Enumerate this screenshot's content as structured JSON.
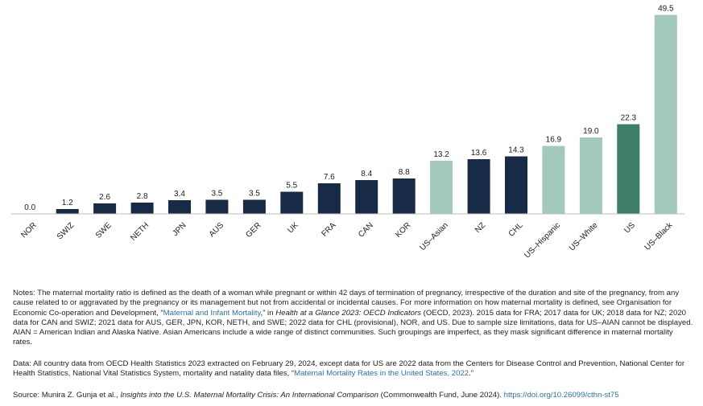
{
  "chart_data": {
    "type": "bar",
    "categories": [
      "NOR",
      "SWIZ",
      "SWE",
      "NETH",
      "JPN",
      "AUS",
      "GER",
      "UK",
      "FRA",
      "CAN",
      "KOR",
      "US–Asian",
      "NZ",
      "CHL",
      "US–Hispanic",
      "US–White",
      "US",
      "US–Black"
    ],
    "values": [
      0.0,
      1.2,
      2.6,
      2.8,
      3.4,
      3.5,
      3.5,
      5.5,
      7.6,
      8.4,
      8.8,
      13.2,
      13.6,
      14.3,
      16.9,
      19.0,
      22.3,
      49.5
    ],
    "value_labels": [
      "0.0",
      "1.2",
      "2.6",
      "2.8",
      "3.4",
      "3.5",
      "3.5",
      "5.5",
      "7.6",
      "8.4",
      "8.8",
      "13.2",
      "13.6",
      "14.3",
      "16.9",
      "19.0",
      "22.3",
      "49.5"
    ],
    "groups": [
      "country",
      "country",
      "country",
      "country",
      "country",
      "country",
      "country",
      "country",
      "country",
      "country",
      "country",
      "us-subgroup",
      "country",
      "country",
      "us-subgroup",
      "us-subgroup",
      "us",
      "us-subgroup"
    ],
    "ylim": [
      0,
      50
    ],
    "grid": false,
    "legend": "none",
    "colors": {
      "country": "#172b46",
      "us": "#3f7d6b",
      "us-subgroup": "#a2c9bc",
      "baseline": "#bbbbbb"
    }
  },
  "notes": {
    "p1_a": "Notes: The maternal mortality ratio is defined as the death of a woman while pregnant or within 42 days of termination of pregnancy, irrespective of the duration and site of the pregnancy, from any cause related to or aggravated by the pregnancy or its management but not from accidental or incidental causes. For more information on how maternal mortality is defined, see Organisation for Economic Co-operation and Development, “",
    "p1_link": "Maternal and Infant Mortality",
    "p1_b": ",” in ",
    "p1_ital": "Health at a Glance 2023: OECD Indicators",
    "p1_c": " (OECD, 2023). 2015 data for FRA; 2017 data for UK; 2018 data for NZ; 2020 data for CAN and SWIZ; 2021 data for AUS, GER, JPN, KOR, NETH, and SWE; 2022 data for CHL (provisional), NOR, and US. Due to sample size limitations, data for US–AIAN cannot be displayed. AIAN = American Indian and Alaska Native. Asian Americans include a wide range of distinct communities. Such groupings are imperfect, as they mask significant difference in maternal mortality rates.",
    "p2_a": "Data: All country data from OECD Health Statistics 2023 extracted on February 29, 2024, except data for US are 2022 data from the Centers for Disease Control and Prevention, National Center for Health Statistics, National Vital Statistics System, mortality and natality data files, “",
    "p2_link": "Maternal Mortality Rates in the United States, 2022",
    "p2_b": ".”",
    "p3_a": "Source: Munira Z. Gunja et al., ",
    "p3_ital": "Insights into the U.S. Maternal Mortality Crisis: An International Comparison",
    "p3_b": " (Commonwealth Fund, June 2024). ",
    "p3_link": "https://doi.org/10.26099/cthn-st75"
  }
}
